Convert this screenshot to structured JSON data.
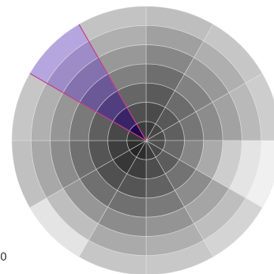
{
  "wheel": {
    "sector_count": 12,
    "ring_count": 7,
    "start_angle_deg": 0,
    "selected_sector": 10,
    "colors": {
      "selected_inner": "#1f0a4e",
      "selected_outer": "#b6a6df",
      "selected_stroke": "#c43c8c",
      "separator": "#e8e8e8"
    },
    "sectors": [
      {
        "shade": [
          58,
          74,
          90,
          110,
          135,
          160,
          190
        ]
      },
      {
        "shade": [
          70,
          88,
          108,
          130,
          152,
          175,
          198
        ]
      },
      {
        "shade": [
          75,
          95,
          118,
          140,
          162,
          185,
          205
        ]
      },
      {
        "shade": [
          80,
          105,
          135,
          170,
          205,
          228,
          240
        ]
      },
      {
        "shade": [
          72,
          92,
          115,
          140,
          165,
          190,
          212
        ]
      },
      {
        "shade": [
          60,
          78,
          98,
          122,
          148,
          175,
          200
        ]
      },
      {
        "shade": [
          45,
          62,
          85,
          112,
          140,
          170,
          198
        ]
      },
      {
        "shade": [
          38,
          55,
          80,
          112,
          150,
          190,
          228
        ]
      },
      {
        "shade": [
          45,
          62,
          85,
          112,
          140,
          168,
          192
        ]
      },
      {
        "shade": [
          55,
          72,
          95,
          122,
          150,
          176,
          198
        ]
      },
      {
        "shade": [
          0,
          0,
          0,
          0,
          0,
          0,
          0
        ]
      },
      {
        "shade": [
          60,
          80,
          102,
          128,
          152,
          175,
          195
        ]
      }
    ]
  },
  "footer": {
    "corner_label": "0"
  }
}
